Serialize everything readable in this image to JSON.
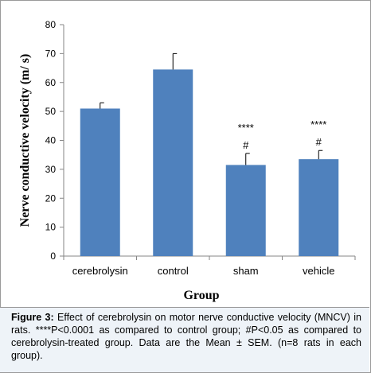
{
  "chart_data": {
    "type": "bar",
    "categories": [
      "cerebrolysin",
      "control",
      "sham",
      "vehicle"
    ],
    "values": [
      51,
      64.5,
      31.5,
      33.5
    ],
    "errors": [
      2,
      5.5,
      4,
      3
    ],
    "annotations": [
      {
        "category": "sham",
        "lines": [
          "****",
          "#"
        ]
      },
      {
        "category": "vehicle",
        "lines": [
          "****",
          "#"
        ]
      }
    ],
    "xlabel": "Group",
    "ylabel": "Nerve conductive velocity (m/ s)",
    "ylim": [
      0,
      80
    ],
    "yticks": [
      0,
      10,
      20,
      30,
      40,
      50,
      60,
      70,
      80
    ],
    "bar_color": "#4f81bd",
    "grid": false,
    "legend": "none"
  },
  "caption": {
    "label": "Figure 3:",
    "text": " Effect of cerebrolysin on motor nerve conductive velocity (MNCV) in rats. ****P<0.0001  as compared to control group; #P<0.05  as compared to cerebrolysin-treated group. Data are the Mean ± SEM. (n=8 rats in each group)."
  }
}
